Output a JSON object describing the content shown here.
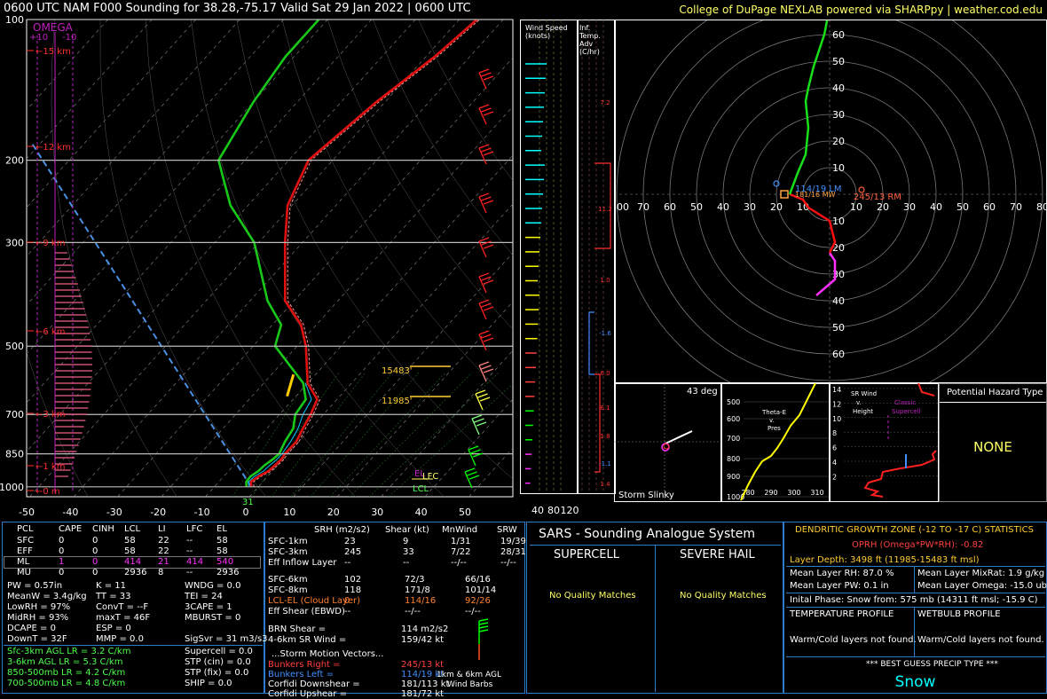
{
  "header": {
    "title": "0600 UTC NAM F000 Sounding for 38.28,-75.17 Valid  Sat 29 Jan 2022 | 0600 UTC",
    "credit": "College of DuPage NEXLAB powered via SHARPpy | weather.cod.edu"
  },
  "skewt": {
    "omega_label": "OMEGA",
    "omega_scale": [
      "+10",
      "-10"
    ],
    "pressure_ticks": [
      "100",
      "200",
      "300",
      "500",
      "700",
      "850",
      "1000"
    ],
    "temp_ticks": [
      "-50",
      "-40",
      "-30",
      "-20",
      "-10",
      "0",
      "10",
      "20",
      "30",
      "40",
      "50"
    ],
    "height_ticks": [
      "15 km",
      "12 km",
      "9 km",
      "6 km",
      "3 km",
      "1 km",
      "0 m"
    ],
    "dgz_top": "15483'",
    "dgz_bottom": "11985'",
    "sfc_value": "31",
    "parcel_labels": [
      "EL",
      "LFC",
      "LCL"
    ]
  },
  "chart_data": {
    "type": "line",
    "title": "0600 UTC NAM F000 Sounding for 38.28,-75.17 Valid  Sat 29 Jan 2022 | 0600 UTC",
    "xlabel": "",
    "ylabel": "",
    "xlim": [
      -50,
      50
    ],
    "ylim": [
      1050,
      100
    ],
    "y_scale": "log",
    "series": [
      {
        "name": "",
        "color": "#e01010",
        "x": [
          -1.6,
          -2.7,
          -2.1,
          -0.9,
          -0.6,
          -0.4,
          -0.7,
          -0.6,
          -1.8,
          -2.9,
          -4.5,
          -10,
          -18,
          -23.5,
          -32,
          -44,
          -51,
          -55.5,
          -52,
          -48,
          -46
        ],
        "y": [
          1000,
          975,
          950,
          925,
          900,
          875,
          850,
          800,
          750,
          700,
          650,
          600,
          500,
          450,
          400,
          300,
          250,
          200,
          150,
          120,
          100
        ]
      },
      {
        "name": "",
        "color": "#18c818",
        "x": [
          -2.7,
          -3.8,
          -3.9,
          -3.2,
          -3,
          -2.4,
          -2,
          -3.2,
          -4,
          -6.4,
          -7.1,
          -11,
          -25,
          -28,
          -36,
          -51,
          -64,
          -76,
          -80,
          -82,
          -82
        ],
        "y": [
          1000,
          975,
          950,
          925,
          900,
          875,
          850,
          800,
          750,
          700,
          650,
          600,
          500,
          450,
          400,
          300,
          250,
          200,
          150,
          120,
          100
        ]
      }
    ]
  },
  "wind_speed": {
    "title": "Wind Speed (knots)",
    "ticks": [
      "40",
      "80",
      "120"
    ]
  },
  "inf_temp": {
    "title": "Inf. Temp. Adv (C/hr)",
    "values": [
      "7.2",
      "11.2",
      "1.0",
      "-1.6",
      "6.0",
      "6.1",
      "1.8",
      "-1.1",
      "1.4"
    ]
  },
  "hodograph": {
    "rings": [
      "10",
      "20",
      "30",
      "40",
      "50",
      "60",
      "70",
      "80"
    ],
    "labels": {
      "lm": "114/19 LM",
      "rm": "245/13 RM",
      "mw": "181/16 MW"
    }
  },
  "slinky": {
    "label": "Storm Slinky",
    "angle": "43 deg"
  },
  "theta": {
    "title": "Theta-E v. Pres",
    "p_ticks": [
      "500",
      "600",
      "700",
      "800",
      "900",
      "1000"
    ],
    "t_ticks": [
      "280",
      "290",
      "300",
      "310"
    ]
  },
  "srwind": {
    "title": "SR Wind v. Height",
    "sub": "Classic Supercell",
    "h_ticks": [
      "14",
      "12",
      "10",
      "8",
      "6",
      "4",
      "2"
    ]
  },
  "hazard": {
    "title": "Potential Hazard Type",
    "value": "NONE"
  },
  "parcels": {
    "headers": [
      "PCL",
      "CAPE",
      "CINH",
      "LCL",
      "LI",
      "LFC",
      "EL"
    ],
    "rows": [
      [
        "SFC",
        "0",
        "0",
        "58",
        "22",
        "--",
        "58"
      ],
      [
        "EFF",
        "0",
        "0",
        "58",
        "22",
        "--",
        "58"
      ],
      [
        "ML",
        "1",
        "0",
        "414",
        "21",
        "414",
        "540"
      ],
      [
        "MU",
        "0",
        "0",
        "2936",
        "8",
        "--",
        "2936"
      ]
    ],
    "stats": [
      [
        "PW = 0.57in",
        "K = 11",
        "WNDG = 0.0"
      ],
      [
        "MeanW = 3.4g/kg",
        "TT = 33",
        "TEI = 24"
      ],
      [
        "LowRH = 97%",
        "ConvT = --F",
        "3CAPE = 1"
      ],
      [
        "MidRH = 93%",
        "maxT = 46F",
        "MBURST = 0"
      ],
      [
        "DCAPE = 0",
        "ESP = 0",
        ""
      ],
      [
        "DownT = 32F",
        "MMP = 0.0",
        "SigSvr = 31 m3/s3"
      ]
    ],
    "lapse": [
      "Sfc-3km AGL LR = 3.2 C/km",
      "3-6km AGL LR = 5.3 C/km",
      "850-500mb LR = 4.2 C/km",
      "700-500mb LR = 4.8 C/km"
    ],
    "composites": [
      "Supercell = 0.0",
      "STP (cin) = 0.0",
      "STP (fix) = 0.0",
      "SHIP = 0.0"
    ]
  },
  "kinematics": {
    "headers": [
      "SRH (m2/s2)",
      "Shear (kt)",
      "MnWind",
      "SRW"
    ],
    "rows": [
      [
        "SFC-1km",
        "23",
        "9",
        "1/31",
        "19/39"
      ],
      [
        "SFC-3km",
        "245",
        "33",
        "7/22",
        "28/31"
      ],
      [
        "Eff Inflow Layer",
        "--",
        "--",
        "--/--",
        "--/--"
      ],
      [
        "SFC-6km",
        "102",
        "72/3",
        "66/16",
        ""
      ],
      [
        "SFC-8km",
        "118",
        "171/8",
        "101/14",
        ""
      ],
      [
        "LCL-EL (Cloud Layer)",
        "0",
        "114/16",
        "92/26",
        ""
      ],
      [
        "Eff Shear (EBWD)",
        "--",
        "--/--",
        "--/--",
        ""
      ]
    ],
    "brn": "BRN Shear =",
    "brn_val": "114 m2/s2",
    "sr_wind": "4-6km SR Wind =",
    "sr_wind_val": "159/42 kt",
    "storm_vectors": "...Storm Motion Vectors...",
    "vectors": [
      [
        "Bunkers Right =",
        "245/13 kt"
      ],
      [
        "Bunkers Left =",
        "114/19 kt"
      ],
      [
        "Corfidi Downshear =",
        "181/113 kt"
      ],
      [
        "Corfidi Upshear =",
        "181/72 kt"
      ]
    ],
    "barb_label": "1km & 6km AGL Wind Barbs"
  },
  "sars": {
    "title": "SARS - Sounding Analogue System",
    "supercell": "SUPERCELL",
    "hail": "SEVERE HAIL",
    "no_match": "No Quality Matches"
  },
  "dgz": {
    "title": "DENDRITIC GROWTH ZONE (-12 TO -17 C) STATISTICS",
    "oprh": "OPRH (Omega*PW*RH): -0.82",
    "depth": "Layer Depth: 3498 ft (11985-15483 ft msl)",
    "rh": "Mean Layer RH: 87.0 %",
    "mixrat": "Mean Layer MixRat: 1.9 g/kg",
    "pw": "Mean Layer PW: 0.1 in",
    "omega": "Mean Layer Omega: -15.0 ub/s",
    "phase": "Inital Phase: Snow from: 575 mb (14311 ft msl; -15.9 C)",
    "temp_profile": "TEMPERATURE PROFILE",
    "wb_profile": "WETBULB PROFILE",
    "warm_cold": "Warm/Cold layers not found.",
    "precip_title": "*** BEST GUESS PRECIP TYPE ***",
    "precip": "Snow"
  },
  "colors": {
    "temp": "#e01010",
    "dewp": "#18c818",
    "virtual": "#ff9090",
    "wetbulb": "#00c8ff",
    "parcel": "#4a90e2",
    "omega": "#c020c0",
    "yellow": "#ffff00",
    "cyan": "#00ffff"
  }
}
